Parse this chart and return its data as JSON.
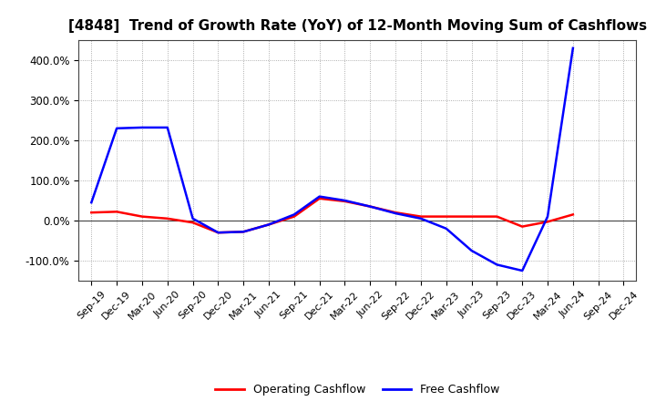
{
  "title": "[4848]  Trend of Growth Rate (YoY) of 12-Month Moving Sum of Cashflows",
  "labels": [
    "Sep-19",
    "Dec-19",
    "Mar-20",
    "Jun-20",
    "Sep-20",
    "Dec-20",
    "Mar-21",
    "Jun-21",
    "Sep-21",
    "Dec-21",
    "Mar-22",
    "Jun-22",
    "Sep-22",
    "Dec-22",
    "Mar-23",
    "Jun-23",
    "Sep-23",
    "Dec-23",
    "Mar-24",
    "Jun-24",
    "Sep-24",
    "Dec-24"
  ],
  "operating_cashflow": [
    20,
    22,
    10,
    5,
    -5,
    -30,
    -28,
    -10,
    10,
    55,
    48,
    35,
    20,
    10,
    10,
    10,
    10,
    -15,
    -3,
    15,
    null,
    null
  ],
  "free_cashflow": [
    45,
    230,
    232,
    232,
    5,
    -30,
    -28,
    -10,
    15,
    60,
    50,
    35,
    18,
    5,
    -20,
    -75,
    -110,
    -125,
    10,
    430,
    null,
    null
  ],
  "operating_color": "#ff0000",
  "free_color": "#0000ff",
  "ylim": [
    -150,
    450
  ],
  "yticks": [
    -100,
    0,
    100,
    200,
    300,
    400
  ],
  "ytick_labels": [
    "-100.0%",
    "0.0%",
    "100.0%",
    "200.0%",
    "300.0%",
    "400.0%"
  ],
  "background_color": "#ffffff",
  "grid_color": "#999999",
  "legend_operating": "Operating Cashflow",
  "legend_free": "Free Cashflow",
  "title_fontsize": 11,
  "tick_fontsize": 8.5,
  "legend_fontsize": 9
}
